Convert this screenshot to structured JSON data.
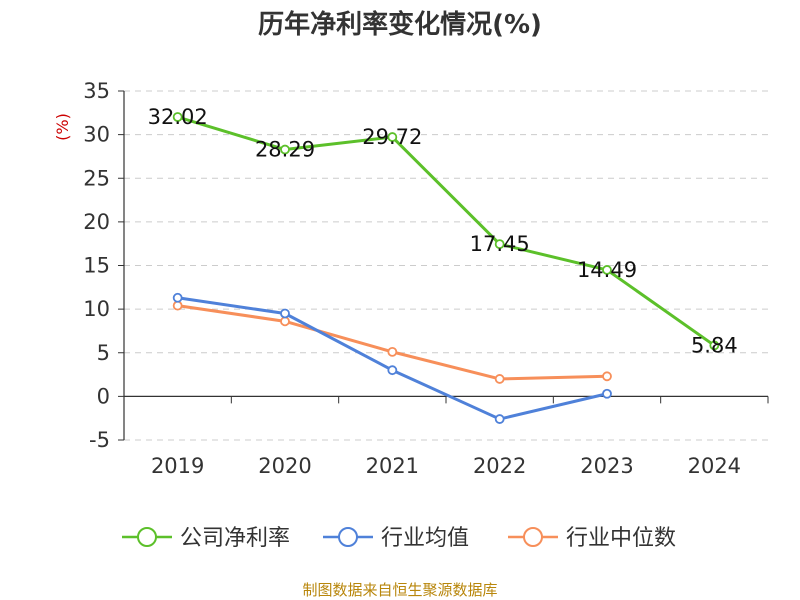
{
  "chart_data": {
    "type": "line",
    "title": "历年净利率变化情况(%)",
    "ylabel": "(%)",
    "xlabel": "",
    "categories": [
      "2019",
      "2020",
      "2021",
      "2022",
      "2023",
      "2024"
    ],
    "ylim": [
      -5,
      35
    ],
    "yticks": [
      35,
      30,
      25,
      20,
      15,
      10,
      5,
      0,
      -5
    ],
    "ytick_labels": [
      "35",
      "30",
      "25",
      "20",
      "15",
      "10",
      "5",
      "0",
      "-5"
    ],
    "grid": true,
    "legend_position": "bottom",
    "series": [
      {
        "name": "公司净利率",
        "color": "#5cc02a",
        "values": [
          32.02,
          28.29,
          29.72,
          17.45,
          14.49,
          5.84
        ],
        "labels": [
          "32.02",
          "28.29",
          "29.72",
          "17.45",
          "14.49",
          "5.84"
        ]
      },
      {
        "name": "行业均值",
        "color": "#4f81d9",
        "values": [
          11.3,
          9.5,
          3.0,
          -2.6,
          0.3,
          null
        ]
      },
      {
        "name": "行业中位数",
        "color": "#f78f5a",
        "values": [
          10.4,
          8.6,
          5.1,
          2.0,
          2.3,
          null
        ]
      }
    ],
    "source": "制图数据来自恒生聚源数据库"
  }
}
